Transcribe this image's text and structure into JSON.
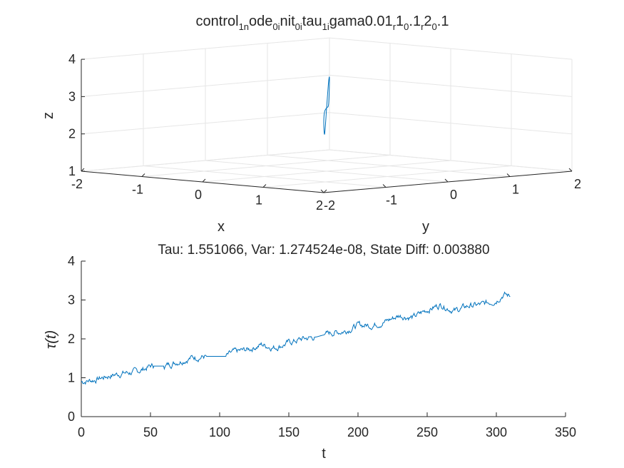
{
  "colors": {
    "line": "#0072BD",
    "axis": "#262626",
    "grid": "#e6e6e6",
    "background": "#ffffff"
  },
  "top": {
    "title_parts": [
      {
        "t": "control",
        "sub": false
      },
      {
        "t": "1n",
        "sub": true
      },
      {
        "t": "ode",
        "sub": false
      },
      {
        "t": "0i",
        "sub": true
      },
      {
        "t": "nit",
        "sub": false
      },
      {
        "t": "0i",
        "sub": true
      },
      {
        "t": "tau",
        "sub": false
      },
      {
        "t": "1i",
        "sub": true
      },
      {
        "t": "gama0.01",
        "sub": false
      },
      {
        "t": "r",
        "sub": true
      },
      {
        "t": "1",
        "sub": false
      },
      {
        "t": "0",
        "sub": true
      },
      {
        "t": ".1",
        "sub": false
      },
      {
        "t": "r",
        "sub": true
      },
      {
        "t": "2",
        "sub": false
      },
      {
        "t": "0",
        "sub": true
      },
      {
        "t": ".1",
        "sub": false
      }
    ],
    "xlabel": "x",
    "ylabel": "y",
    "zlabel": "z",
    "x_ticks": [
      "-2",
      "-1",
      "0",
      "1",
      "2"
    ],
    "y_ticks": [
      "-2",
      "-1",
      "0",
      "1",
      "2"
    ],
    "z_ticks": [
      "1",
      "2",
      "3",
      "4"
    ]
  },
  "bottom": {
    "title": "Tau: 1.551066, Var: 1.274524e-08, State Diff: 0.003880",
    "xlabel": "t",
    "ylabel": "τ(t)",
    "x_ticks": [
      "0",
      "50",
      "100",
      "150",
      "200",
      "250",
      "300",
      "350"
    ],
    "y_ticks": [
      "0",
      "1",
      "2",
      "3",
      "4"
    ]
  },
  "chart_data": [
    {
      "type": "line",
      "projection": "3d",
      "title": "control1node0init0itau1igama0.01r10.1r20.1",
      "xlabel": "x",
      "ylabel": "y",
      "zlabel": "z",
      "xlim": [
        -2,
        2
      ],
      "ylim": [
        -2,
        2
      ],
      "zlim": [
        1,
        4
      ],
      "grid": true,
      "shape": "figure-eight loop",
      "series": [
        {
          "points": [
            {
              "x": 0.0,
              "y": 0.0,
              "z": 2.7
            },
            {
              "x": 1.4,
              "y": -1.4,
              "z": 3.0
            },
            {
              "x": 2.0,
              "y": -2.0,
              "z": 2.9
            },
            {
              "x": 1.4,
              "y": -1.4,
              "z": 2.4
            },
            {
              "x": 0.0,
              "y": 0.0,
              "z": 2.7
            },
            {
              "x": -1.4,
              "y": 1.4,
              "z": 3.0
            },
            {
              "x": -2.0,
              "y": 2.0,
              "z": 2.9
            },
            {
              "x": -1.4,
              "y": 1.4,
              "z": 2.4
            },
            {
              "x": 0.0,
              "y": 0.0,
              "z": 2.7
            }
          ]
        }
      ]
    },
    {
      "type": "line",
      "title": "Tau: 1.551066, Var: 1.274524e-08, State Diff: 0.003880",
      "xlabel": "t",
      "ylabel": "τ(t)",
      "xlim": [
        0,
        350
      ],
      "ylim": [
        0,
        4
      ],
      "grid": false,
      "series": [
        {
          "x": [
            0,
            10,
            20,
            30,
            40,
            50,
            60,
            70,
            80,
            90,
            100,
            105,
            110,
            120,
            130,
            140,
            150,
            160,
            170,
            180,
            190,
            200,
            210,
            220,
            230,
            240,
            250,
            260,
            270,
            280,
            290,
            300,
            305,
            310
          ],
          "y": [
            0.9,
            0.95,
            1.05,
            1.12,
            1.15,
            1.3,
            1.3,
            1.42,
            1.52,
            1.55,
            1.55,
            1.55,
            1.65,
            1.72,
            1.85,
            1.78,
            1.9,
            2.0,
            2.05,
            2.15,
            2.2,
            2.35,
            2.35,
            2.45,
            2.6,
            2.55,
            2.75,
            2.88,
            2.72,
            2.85,
            2.88,
            3.0,
            3.15,
            3.1
          ]
        }
      ]
    }
  ]
}
